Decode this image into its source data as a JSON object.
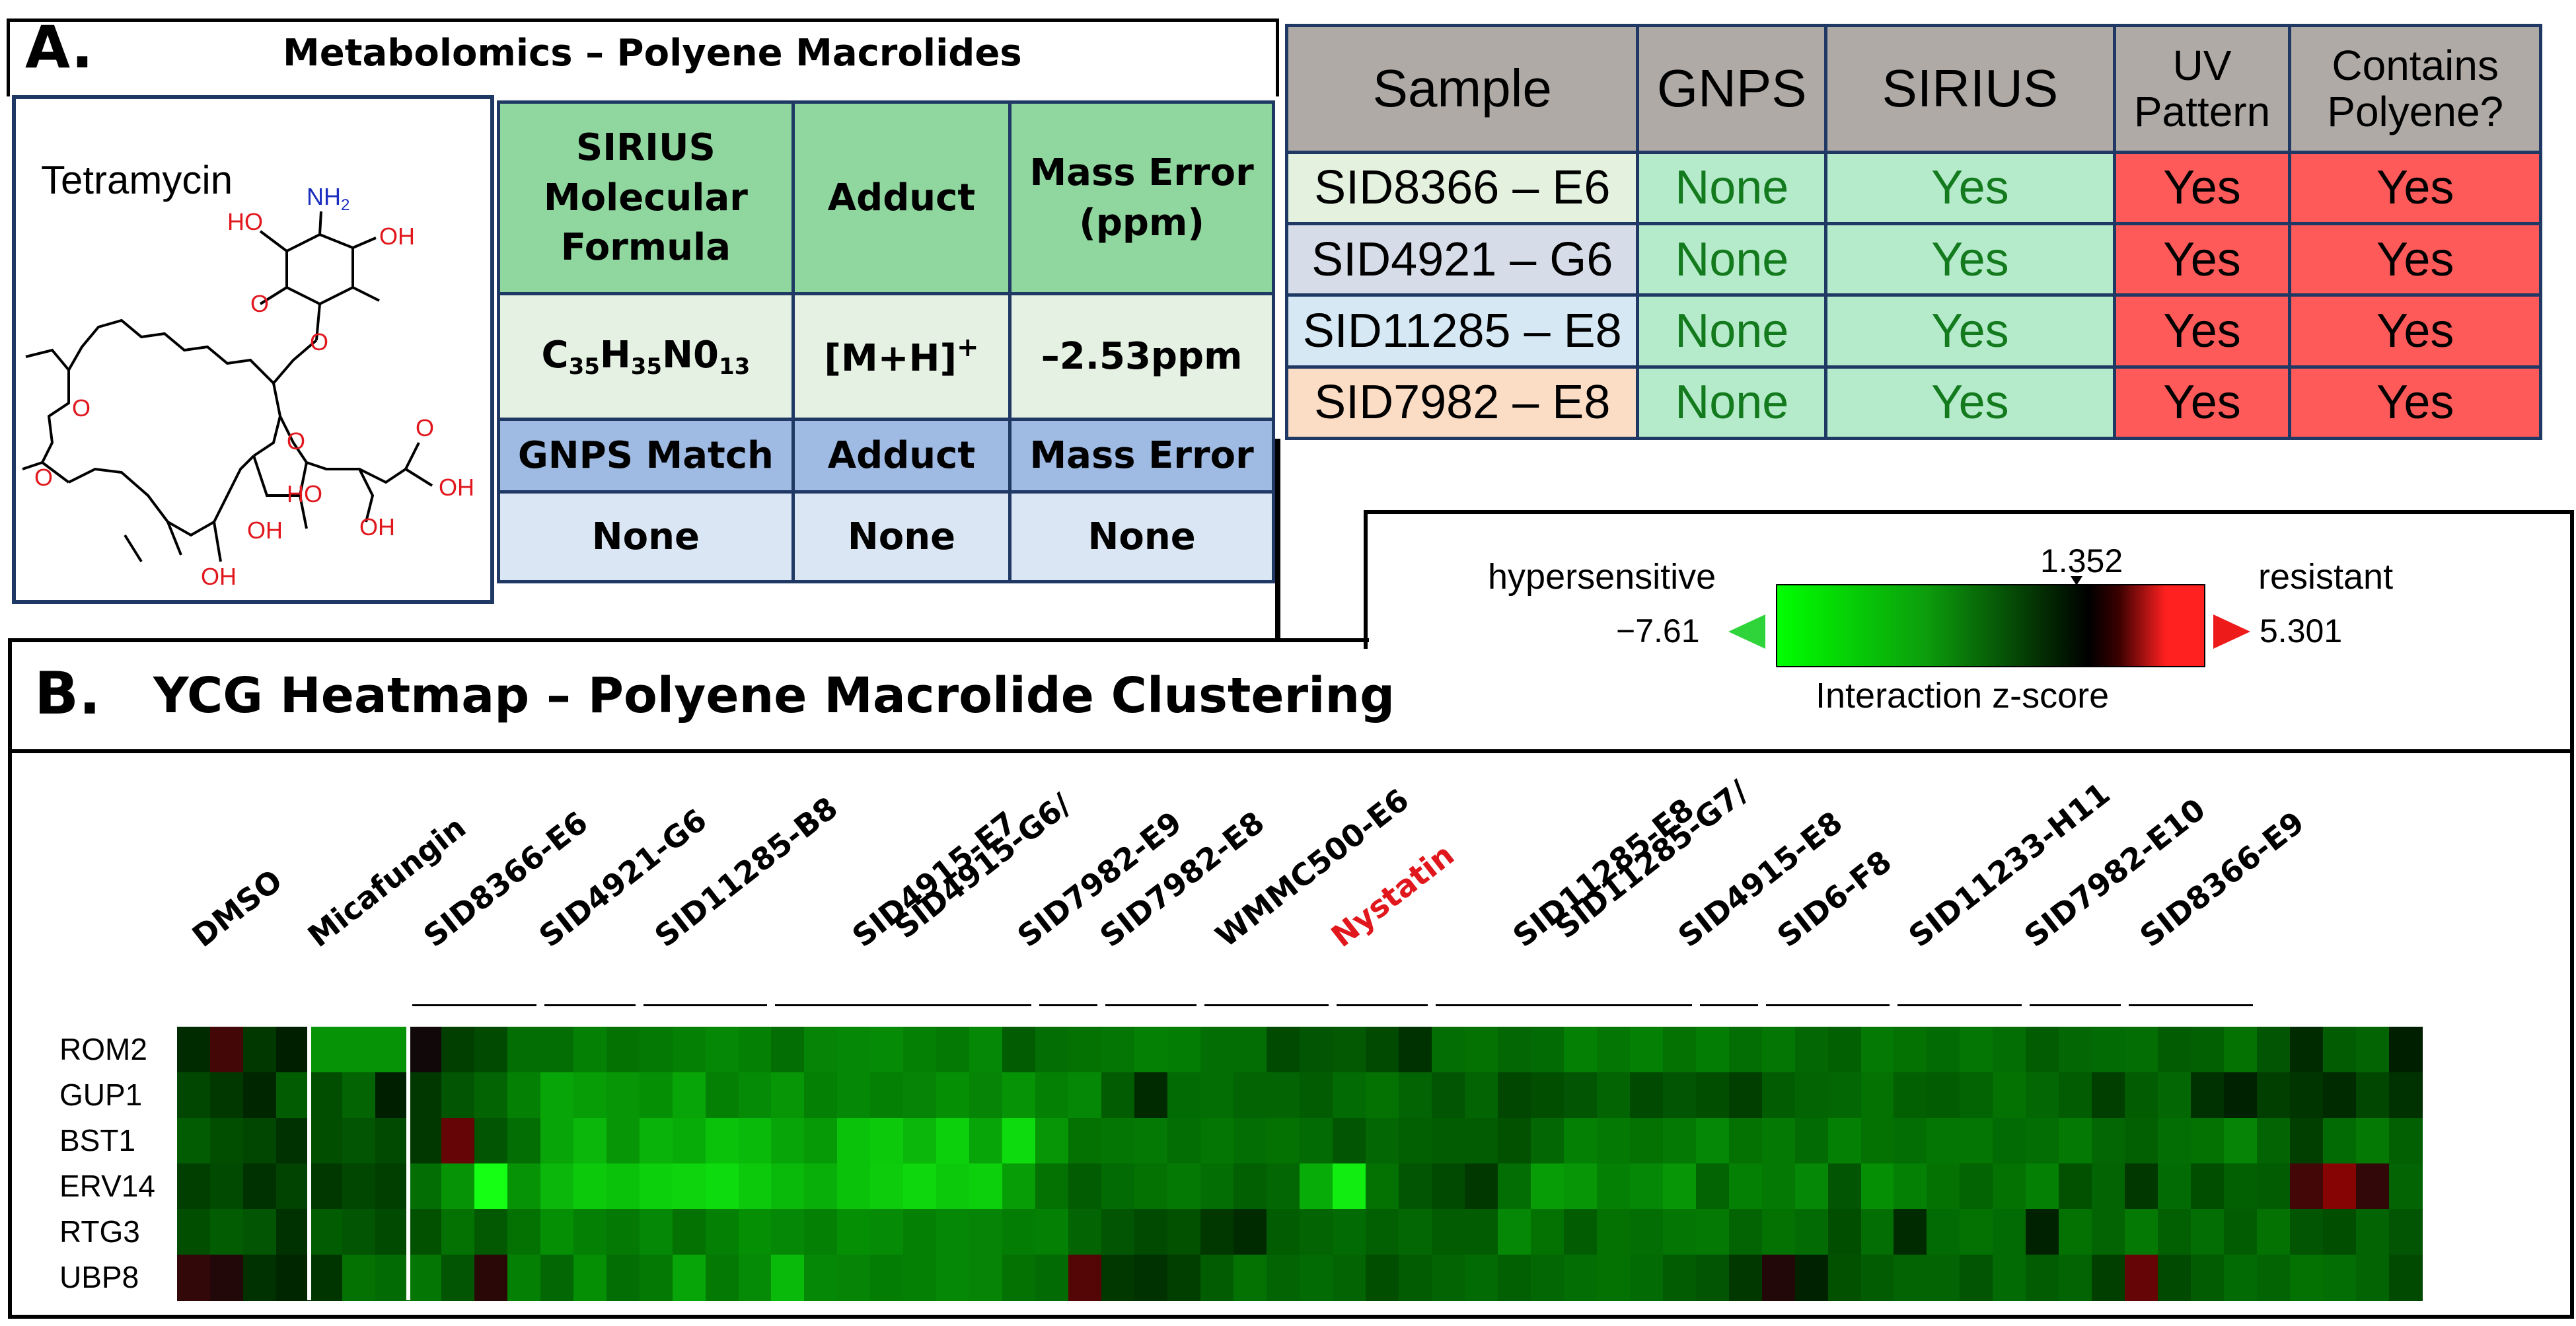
{
  "panel_a": {
    "letter": "A.",
    "title": "Metabolomics – Polyene Macrolides",
    "compound": {
      "name": "Tetramycin",
      "atoms": {
        "oh": "OH",
        "ho": "HO",
        "nh2": "NH",
        "nh2_sub": "2",
        "o": "O"
      }
    },
    "sirius_table": {
      "header": [
        "SIRIUS Molecular Formula",
        "Adduct",
        "Mass Error (ppm)"
      ],
      "formula": {
        "c": "C",
        "c_n": "35",
        "h": "H",
        "h_n": "35",
        "n": "N0",
        "n_n": "13"
      },
      "adduct": "[M+H]",
      "adduct_sup": "+",
      "mass_error": "–2.53ppm",
      "gnps_header": [
        "GNPS Match",
        "Adduct",
        "Mass Error"
      ],
      "gnps_values": [
        "None",
        "None",
        "None"
      ]
    },
    "sample_table": {
      "headers": {
        "sample": "Sample",
        "gnps": "GNPS",
        "sirius": "SIRIUS",
        "uv": "UV Pattern",
        "polyene": "Contains Polyene?"
      },
      "rows": [
        {
          "sample": "SID8366 – E6",
          "gnps": "None",
          "sirius": "Yes",
          "uv": "Yes",
          "polyene": "Yes",
          "bg": "#e4f1df"
        },
        {
          "sample": "SID4921 – G6",
          "gnps": "None",
          "sirius": "Yes",
          "uv": "Yes",
          "polyene": "Yes",
          "bg": "#d6dde8"
        },
        {
          "sample": "SID11285 – E8",
          "gnps": "None",
          "sirius": "Yes",
          "uv": "Yes",
          "polyene": "Yes",
          "bg": "#d5e8f3"
        },
        {
          "sample": "SID7982 – E8",
          "gnps": "None",
          "sirius": "Yes",
          "uv": "Yes",
          "polyene": "Yes",
          "bg": "#fbdcc4"
        }
      ]
    }
  },
  "legend": {
    "left_label": "hypersensitive",
    "right_label": "resistant",
    "min": "−7.61",
    "max": "5.301",
    "marker": "1.352",
    "caption": "Interaction z-score"
  },
  "panel_b": {
    "letter": "B.",
    "title": "YCG Heatmap – Polyene Macrolide Clustering"
  },
  "chart_data": {
    "type": "heatmap",
    "title": "YCG Heatmap – Polyene Macrolide Clustering",
    "colorbar": {
      "min": -7.61,
      "max": 5.301,
      "marker": 1.352,
      "label": "Interaction z-score",
      "low_label": "hypersensitive",
      "high_label": "resistant"
    },
    "rows": [
      "ROM2",
      "GUP1",
      "BST1",
      "ERV14",
      "RTG3",
      "UBP8"
    ],
    "groups": [
      {
        "label": "DMSO",
        "lines": [
          "DMSO"
        ],
        "cols": 4,
        "red": false
      },
      {
        "label": "Micafungin",
        "lines": [
          "Micafungin"
        ],
        "cols": 3,
        "red": false
      },
      {
        "label": "SID8366-E6",
        "lines": [
          "SID8366-E6"
        ],
        "cols": 4,
        "red": false
      },
      {
        "label": "SID4921-G6",
        "lines": [
          "SID4921-G6"
        ],
        "cols": 3,
        "red": false
      },
      {
        "label": "SID11285-B8",
        "lines": [
          "SID11285-B8"
        ],
        "cols": 4,
        "red": false
      },
      {
        "label": "SID4915-G6/SID4915-E7",
        "lines": [
          "SID4915-G6/",
          "SID4915-E7"
        ],
        "cols": 8,
        "red": false
      },
      {
        "label": "SID7982-E9",
        "lines": [
          "SID7982-E9"
        ],
        "cols": 2,
        "red": false
      },
      {
        "label": "SID7982-E8",
        "lines": [
          "SID7982-E8"
        ],
        "cols": 3,
        "red": false
      },
      {
        "label": "WMMC500-E6",
        "lines": [
          "WMMC500-E6"
        ],
        "cols": 4,
        "red": false
      },
      {
        "label": "Nystatin",
        "lines": [
          "Nystatin"
        ],
        "cols": 3,
        "red": true
      },
      {
        "label": "SID11285-G7/SID11285-E8",
        "lines": [
          "SID11285-G7/",
          "SID11285-E8"
        ],
        "cols": 8,
        "red": false
      },
      {
        "label": "SID4915-E8",
        "lines": [
          "SID4915-E8"
        ],
        "cols": 2,
        "red": false
      },
      {
        "label": "SID6-F8",
        "lines": [
          "SID6-F8"
        ],
        "cols": 4,
        "red": false
      },
      {
        "label": "SID11233-H11",
        "lines": [
          "SID11233-H11"
        ],
        "cols": 4,
        "red": false
      },
      {
        "label": "SID7982-E10",
        "lines": [
          "SID7982-E10"
        ],
        "cols": 3,
        "red": false
      },
      {
        "label": "SID8366-E9",
        "lines": [
          "SID8366-E9"
        ],
        "cols": 4,
        "red": false
      }
    ],
    "values": [
      [
        -0.6,
        0.8,
        -1.0,
        -0.3,
        -3.5,
        -3.5,
        -3.5,
        0.2,
        -1.2,
        -1.5,
        -2.5,
        -2.5,
        -3.0,
        -2.6,
        -2.8,
        -3.0,
        -3.2,
        -3.0,
        -2.5,
        -3.1,
        -3.2,
        -3.3,
        -3.0,
        -2.8,
        -3.2,
        -2.0,
        -2.5,
        -2.6,
        -2.7,
        -3.0,
        -2.9,
        -2.5,
        -2.5,
        -1.5,
        -1.8,
        -1.9,
        -1.5,
        -0.8,
        -2.5,
        -2.6,
        -2.3,
        -2.4,
        -3.0,
        -2.7,
        -3.0,
        -2.6,
        -2.9,
        -2.5,
        -2.7,
        -2.3,
        -2.1,
        -2.8,
        -2.6,
        -2.4,
        -2.7,
        -2.5,
        -2.0,
        -2.3,
        -2.4,
        -2.5,
        -2.0,
        -2.1,
        -2.6,
        -1.8,
        -0.6,
        -2.0,
        -2.2,
        -0.3
      ],
      [
        -1.4,
        -1.0,
        -0.5,
        -2.0,
        -1.6,
        -2.2,
        -0.3,
        -1.0,
        -1.8,
        -2.2,
        -3.0,
        -4.0,
        -3.8,
        -3.6,
        -3.4,
        -4.0,
        -3.0,
        -3.3,
        -3.6,
        -3.0,
        -3.2,
        -3.0,
        -3.1,
        -3.4,
        -3.1,
        -3.5,
        -3.0,
        -3.2,
        -2.0,
        -0.6,
        -2.4,
        -2.5,
        -2.2,
        -2.2,
        -2.0,
        -2.4,
        -2.6,
        -2.2,
        -1.8,
        -2.2,
        -1.4,
        -1.6,
        -1.8,
        -2.2,
        -1.5,
        -1.8,
        -1.6,
        -1.2,
        -2.0,
        -2.2,
        -2.3,
        -2.6,
        -2.1,
        -2.0,
        -2.2,
        -2.6,
        -2.3,
        -2.0,
        -1.2,
        -2.0,
        -2.3,
        -0.8,
        -0.4,
        -1.2,
        -0.9,
        -0.6,
        -1.4,
        -0.8
      ],
      [
        -2.0,
        -1.6,
        -1.4,
        -0.8,
        -1.6,
        -1.8,
        -1.5,
        -1.0,
        1.2,
        -1.8,
        -2.5,
        -4.0,
        -4.5,
        -3.6,
        -4.4,
        -4.2,
        -4.8,
        -4.6,
        -4.0,
        -3.7,
        -4.8,
        -5.0,
        -4.5,
        -5.2,
        -4.0,
        -5.5,
        -3.6,
        -2.6,
        -2.7,
        -2.8,
        -2.5,
        -2.7,
        -2.5,
        -2.6,
        -2.4,
        -1.8,
        -2.3,
        -2.1,
        -2.0,
        -2.0,
        -1.7,
        -2.3,
        -3.0,
        -2.8,
        -2.6,
        -2.8,
        -3.2,
        -2.6,
        -2.8,
        -2.4,
        -3.0,
        -2.6,
        -2.5,
        -2.7,
        -2.7,
        -2.4,
        -2.5,
        -2.8,
        -2.3,
        -2.1,
        -2.5,
        -2.6,
        -3.1,
        -2.2,
        -1.2,
        -2.4,
        -2.8,
        -2.1
      ],
      [
        -1.2,
        -1.5,
        -0.8,
        -1.3,
        -1.0,
        -1.4,
        -1.2,
        -2.5,
        -3.5,
        -6.5,
        -3.5,
        -4.5,
        -5.0,
        -4.8,
        -5.2,
        -5.3,
        -5.5,
        -5.0,
        -4.6,
        -4.3,
        -4.8,
        -5.1,
        -5.4,
        -5.0,
        -5.2,
        -3.8,
        -2.6,
        -2.0,
        -2.4,
        -2.6,
        -2.8,
        -2.5,
        -2.1,
        -2.3,
        -4.2,
        -6.0,
        -2.6,
        -1.8,
        -1.5,
        -1.0,
        -2.5,
        -3.8,
        -3.6,
        -3.0,
        -3.2,
        -3.6,
        -2.2,
        -3.0,
        -2.8,
        -3.2,
        -1.8,
        -3.4,
        -3.0,
        -2.6,
        -2.2,
        -2.6,
        -3.0,
        -1.7,
        -2.2,
        -1.0,
        -2.4,
        -1.6,
        -2.1,
        -2.0,
        0.8,
        1.6,
        0.6,
        -2.2
      ],
      [
        -1.6,
        -2.0,
        -1.8,
        -0.8,
        -2.0,
        -1.8,
        -1.5,
        -1.7,
        -2.6,
        -1.9,
        -2.6,
        -3.4,
        -3.0,
        -2.8,
        -3.2,
        -2.6,
        -3.0,
        -3.4,
        -3.2,
        -3.0,
        -3.4,
        -3.3,
        -3.0,
        -3.2,
        -3.1,
        -2.9,
        -3.0,
        -2.2,
        -1.8,
        -1.5,
        -1.7,
        -1.0,
        -0.6,
        -2.0,
        -2.2,
        -2.4,
        -2.1,
        -2.3,
        -2.0,
        -2.0,
        -3.2,
        -2.6,
        -2.0,
        -2.6,
        -2.5,
        -2.7,
        -2.8,
        -2.2,
        -2.6,
        -2.4,
        -1.6,
        -2.5,
        -0.6,
        -2.4,
        -2.6,
        -2.4,
        -0.4,
        -2.6,
        -2.2,
        -2.8,
        -2.1,
        -2.5,
        -2.0,
        -2.6,
        -1.8,
        -1.6,
        -2.2,
        -1.8
      ],
      [
        0.6,
        0.4,
        -0.8,
        -0.5,
        -0.9,
        -2.6,
        -2.4,
        -2.7,
        -1.8,
        0.5,
        -3.0,
        -2.3,
        -3.4,
        -2.5,
        -2.8,
        -4.0,
        -2.8,
        -3.3,
        -4.6,
        -3.2,
        -3.1,
        -2.9,
        -3.0,
        -3.2,
        -3.1,
        -2.6,
        -2.4,
        1.0,
        -1.0,
        -0.8,
        -1.2,
        -2.0,
        -2.6,
        -2.2,
        -2.4,
        -2.2,
        -1.6,
        -2.0,
        -2.2,
        -2.4,
        -2.1,
        -2.3,
        -2.5,
        -2.6,
        -2.4,
        -2.0,
        -1.8,
        -1.0,
        0.4,
        -0.4,
        -1.7,
        -2.0,
        -2.2,
        -2.2,
        -1.8,
        -2.4,
        -2.0,
        -2.2,
        -1.2,
        1.2,
        -1.5,
        -2.0,
        -2.4,
        -2.2,
        -2.6,
        -2.5,
        -2.2,
        -1.5
      ]
    ]
  }
}
